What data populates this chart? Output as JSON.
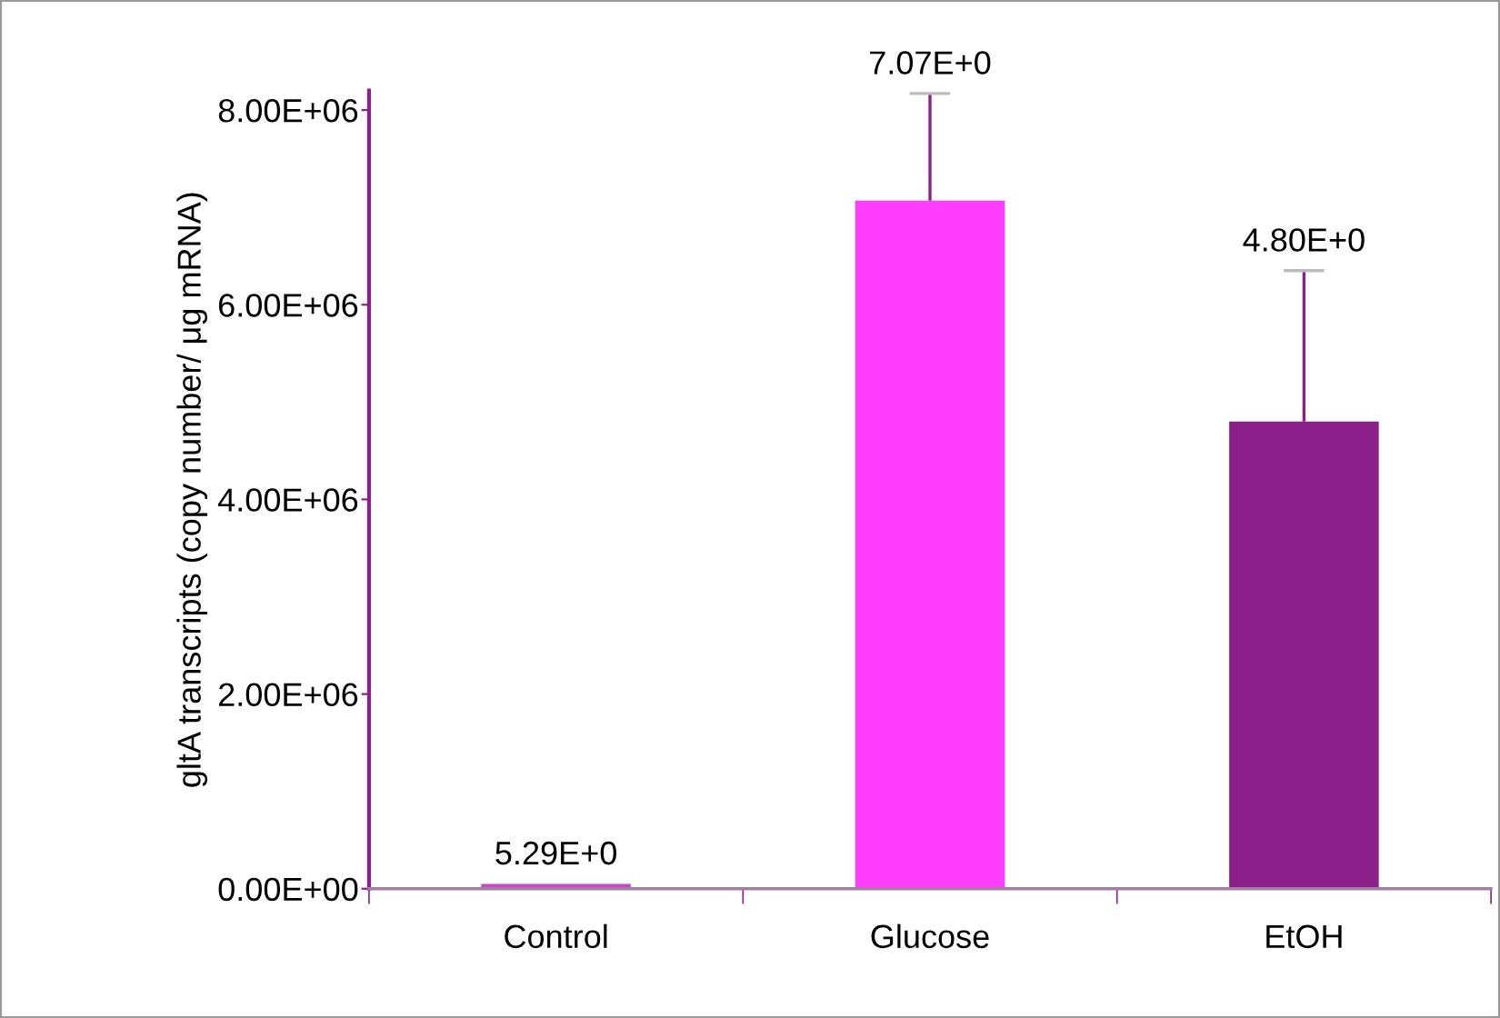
{
  "chart_data": {
    "type": "bar",
    "ylabel": "gltA transcripts (copy number/ μg mRNA)",
    "categories": [
      "Control",
      "Glucose",
      "EtOH"
    ],
    "values": [
      50000,
      7070000,
      4800000
    ],
    "colors": [
      "#cc44cc",
      "#ff3dff",
      "#8b208b"
    ],
    "errors": [
      null,
      [
        7070000,
        8170000
      ],
      [
        4800000,
        6350000
      ]
    ],
    "annotations": [
      {
        "text": "5.29E+0",
        "x": "Control",
        "y": 50000
      },
      {
        "text": "7.07E+0",
        "x": "Glucose",
        "y": 8170000
      },
      {
        "text": "4.80E+0",
        "x": "EtOH",
        "y": 6350000
      }
    ],
    "ylim": [
      0,
      8200000
    ],
    "yticks": [
      {
        "value": 0,
        "label": "0.00E+00"
      },
      {
        "value": 2000000,
        "label": "2.00E+06"
      },
      {
        "value": 4000000,
        "label": "4.00E+06"
      },
      {
        "value": 6000000,
        "label": "6.00E+06"
      },
      {
        "value": 8000000,
        "label": "8.00E+06"
      }
    ],
    "grid": false
  }
}
